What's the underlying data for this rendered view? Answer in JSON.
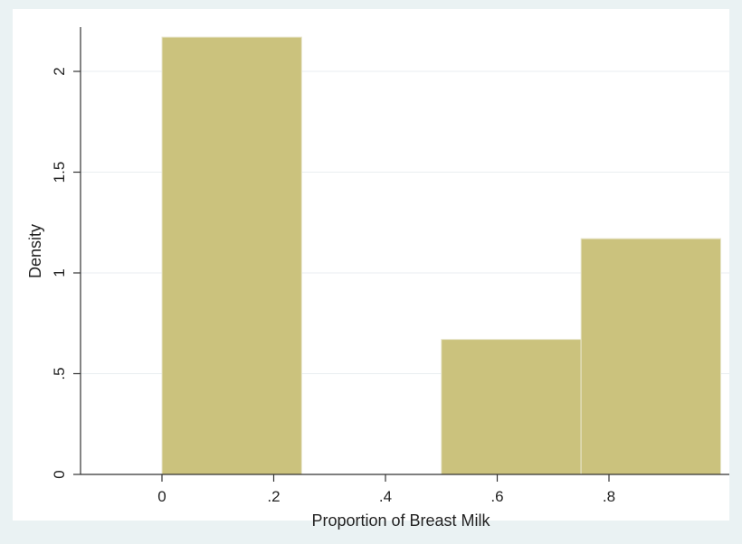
{
  "chart_data": {
    "type": "bar",
    "subtype": "histogram",
    "title": "",
    "xlabel": "Proportion of Breast Milk",
    "ylabel": "Density",
    "xlim": [
      -0.142,
      1.0
    ],
    "ylim": [
      0,
      2.23
    ],
    "x_ticks": [
      {
        "value": 0,
        "label": "0"
      },
      {
        "value": 0.2,
        "label": ".2"
      },
      {
        "value": 0.4,
        "label": ".4"
      },
      {
        "value": 0.6,
        "label": ".6"
      },
      {
        "value": 0.8,
        "label": ".8"
      }
    ],
    "y_ticks": [
      {
        "value": 0,
        "label": "0"
      },
      {
        "value": 0.5,
        "label": ".5"
      },
      {
        "value": 1,
        "label": "1"
      },
      {
        "value": 1.5,
        "label": "1.5"
      },
      {
        "value": 2,
        "label": "2"
      }
    ],
    "bins": [
      {
        "x0": 0,
        "x1": 0.25,
        "density": 2.17
      },
      {
        "x0": 0.25,
        "x1": 0.5,
        "density": 0
      },
      {
        "x0": 0.5,
        "x1": 0.75,
        "density": 0.67
      },
      {
        "x0": 0.75,
        "x1": 1.0,
        "density": 1.17
      }
    ],
    "grid": "horizontal",
    "legend": "none",
    "colors": {
      "bar_fill": "#cbc27d",
      "bar_stroke": "#e8e6cc",
      "plot_background": "#ffffff",
      "outer_background": "#eaf2f3",
      "gridline": "#e9eef0",
      "axis": "#333333"
    }
  }
}
